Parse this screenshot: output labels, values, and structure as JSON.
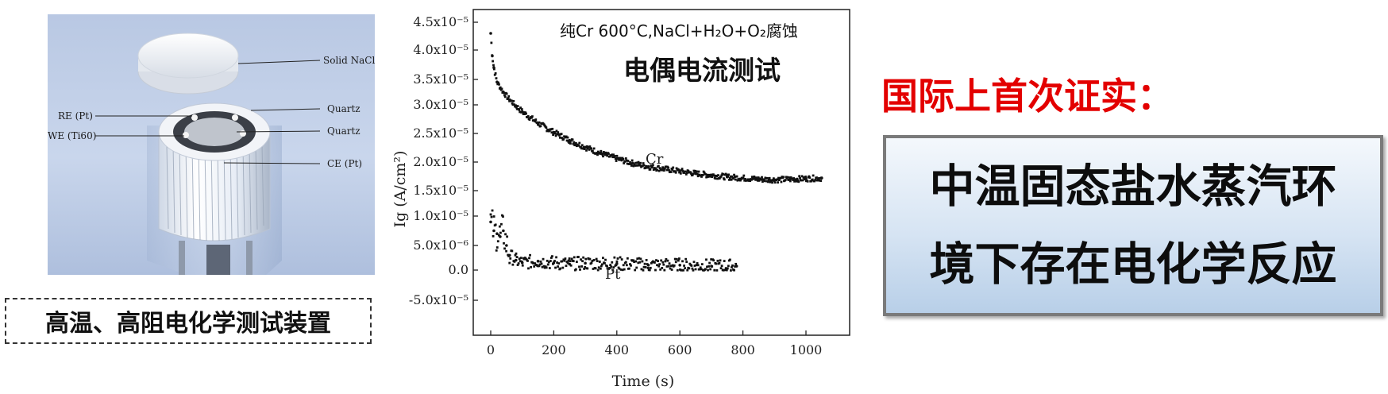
{
  "diagram": {
    "labels": {
      "solid_nacl": "Solid NaCl",
      "quartz_top": "Quartz",
      "quartz_mid": "Quartz",
      "re": "RE (Pt)",
      "we": "WE (Ti60)",
      "ce": "CE (Pt)"
    },
    "caption": "高温、高阻电化学测试装置"
  },
  "chart_data": {
    "type": "scatter",
    "title": "纯Cr 600°C,NaCl+H₂O+O₂腐蚀",
    "subtitle": "电偶电流测试",
    "xlabel": "Time (s)",
    "ylabel": "Ig (A/cm²)",
    "xlim": [
      -10,
      1100
    ],
    "ylim": [
      -5e-05,
      4.8e-05
    ],
    "x_ticks": [
      0,
      200,
      400,
      600,
      800,
      1000
    ],
    "y_ticks": [
      -5e-05,
      0.0,
      5e-06,
      1e-05,
      1.5e-05,
      2e-05,
      2.5e-05,
      3e-05,
      3.5e-05,
      4e-05,
      4.5e-05
    ],
    "y_tick_labels": [
      "-5.0x10⁻⁵",
      "0.0",
      "5.0x10⁻⁶",
      "1.0x10⁻⁵",
      "1.5x10⁻⁵",
      "2.0x10⁻⁵",
      "2.5x10⁻⁵",
      "3.0x10⁻⁵",
      "3.5x10⁻⁵",
      "4.0x10⁻⁵",
      "4.5x10⁻⁵"
    ],
    "grid": false,
    "series": [
      {
        "name": "Cr",
        "x": [
          0,
          5,
          10,
          20,
          40,
          60,
          80,
          100,
          150,
          200,
          250,
          300,
          350,
          400,
          450,
          500,
          550,
          600,
          650,
          700,
          750,
          800,
          850,
          900,
          950,
          1000,
          1050
        ],
        "y": [
          4.3e-05,
          3.9e-05,
          3.7e-05,
          3.45e-05,
          3.25e-05,
          3.1e-05,
          2.98e-05,
          2.88e-05,
          2.68e-05,
          2.52e-05,
          2.38e-05,
          2.26e-05,
          2.15e-05,
          2.06e-05,
          1.98e-05,
          1.92e-05,
          1.88e-05,
          1.84e-05,
          1.8e-05,
          1.77e-05,
          1.74e-05,
          1.72e-05,
          1.7e-05,
          1.69e-05,
          1.7e-05,
          1.71e-05,
          1.72e-05
        ]
      },
      {
        "name": "Pt",
        "x": [
          0,
          10,
          20,
          30,
          40,
          50,
          60,
          80,
          100,
          150,
          200,
          250,
          300,
          400,
          500,
          600,
          700,
          780
        ],
        "y": [
          9e-06,
          7.5e-06,
          7e-06,
          6.5e-06,
          7.5e-06,
          5e-06,
          3e-06,
          2e-06,
          1.5e-06,
          1.8e-06,
          1.5e-06,
          1.2e-06,
          1.4e-06,
          1.3e-06,
          1e-06,
          1e-06,
          8e-07,
          8e-07
        ]
      }
    ]
  },
  "headline": "国际上首次证实：",
  "conclusion": {
    "line1": "中温固态盐水蒸汽环",
    "line2": "境下存在电化学反应"
  }
}
